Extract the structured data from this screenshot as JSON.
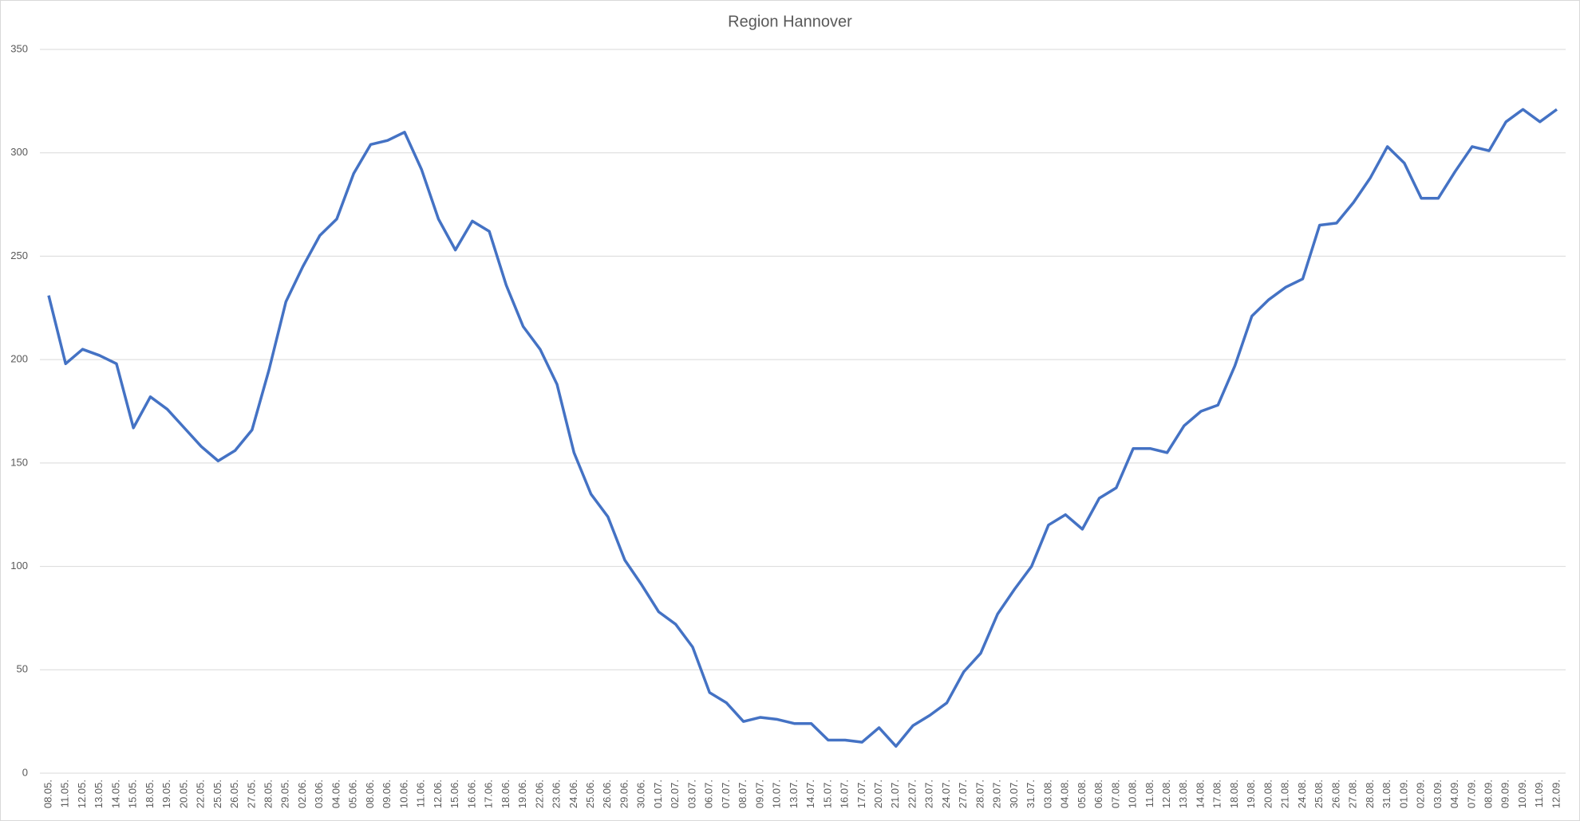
{
  "chart_data": {
    "type": "line",
    "title": "Region Hannover",
    "categories": [
      "08.05.",
      "11.05.",
      "12.05.",
      "13.05.",
      "14.05.",
      "15.05.",
      "18.05.",
      "19.05.",
      "20.05.",
      "22.05.",
      "25.05.",
      "26.05.",
      "27.05.",
      "28.05.",
      "29.05.",
      "02.06.",
      "03.06.",
      "04.06.",
      "05.06.",
      "08.06.",
      "09.06.",
      "10.06.",
      "11.06.",
      "12.06.",
      "15.06.",
      "16.06.",
      "17.06.",
      "18.06.",
      "19.06.",
      "22.06.",
      "23.06.",
      "24.06.",
      "25.06.",
      "26.06.",
      "29.06.",
      "30.06.",
      "01.07.",
      "02.07.",
      "03.07.",
      "06.07.",
      "07.07.",
      "08.07.",
      "09.07.",
      "10.07.",
      "13.07.",
      "14.07.",
      "15.07.",
      "16.07.",
      "17.07.",
      "20.07.",
      "21.07.",
      "22.07.",
      "23.07.",
      "24.07.",
      "27.07.",
      "28.07.",
      "29.07.",
      "30.07.",
      "31.07.",
      "03.08.",
      "04.08.",
      "05.08.",
      "06.08.",
      "07.08.",
      "10.08.",
      "11.08.",
      "12.08.",
      "13.08.",
      "14.08.",
      "17.08.",
      "18.08.",
      "19.08.",
      "20.08.",
      "21.08.",
      "24.08.",
      "25.08.",
      "26.08.",
      "27.08.",
      "28.08.",
      "31.08.",
      "01.09.",
      "02.09.",
      "03.09.",
      "04.09.",
      "07.09.",
      "08.09.",
      "09.09.",
      "10.09.",
      "11.09.",
      "12.09."
    ],
    "values": [
      231,
      198,
      205,
      202,
      198,
      167,
      182,
      176,
      167,
      158,
      151,
      156,
      166,
      195,
      228,
      245,
      260,
      268,
      290,
      304,
      306,
      310,
      292,
      268,
      253,
      267,
      262,
      236,
      216,
      205,
      188,
      155,
      135,
      124,
      103,
      91,
      78,
      72,
      61,
      39,
      34,
      25,
      27,
      26,
      24,
      24,
      16,
      16,
      15,
      22,
      13,
      23,
      28,
      34,
      49,
      58,
      77,
      89,
      100,
      120,
      125,
      118,
      133,
      138,
      157,
      157,
      155,
      168,
      175,
      178,
      197,
      221,
      229,
      235,
      239,
      265,
      266,
      276,
      288,
      303,
      295,
      278,
      278,
      291,
      303,
      301,
      315,
      321,
      315,
      321
    ],
    "color": "#4472c4",
    "ylim": [
      0,
      350
    ],
    "yticks": [
      0,
      50,
      100,
      150,
      200,
      250,
      300,
      350
    ],
    "grid": true
  }
}
